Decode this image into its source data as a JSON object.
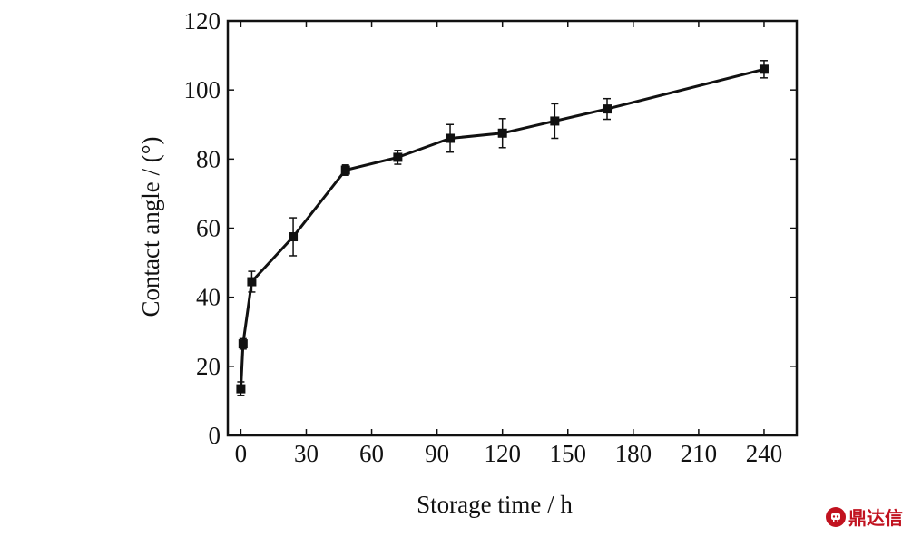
{
  "chart_data": {
    "type": "line",
    "xlabel": "Storage time / h",
    "ylabel": "Contact angle / (°)",
    "xlim": [
      -6,
      255
    ],
    "ylim": [
      0,
      120
    ],
    "xticks": [
      0,
      30,
      60,
      90,
      120,
      150,
      180,
      210,
      240
    ],
    "yticks": [
      0,
      20,
      40,
      60,
      80,
      100,
      120
    ],
    "grid": false,
    "marker": "square",
    "line_color": "#111111",
    "series": [
      {
        "x": [
          0,
          1,
          5,
          24,
          48,
          72,
          96,
          120,
          144,
          168,
          240
        ],
        "y": [
          13.5,
          26.5,
          44.5,
          57.5,
          76.8,
          80.5,
          86,
          87.5,
          91,
          94.5,
          106
        ],
        "error": [
          2,
          1.5,
          3,
          5.5,
          1.5,
          2,
          4,
          4.2,
          5,
          3,
          2.5
        ]
      }
    ]
  },
  "watermark": {
    "text": "鼎达信",
    "color": "#c1121f"
  }
}
